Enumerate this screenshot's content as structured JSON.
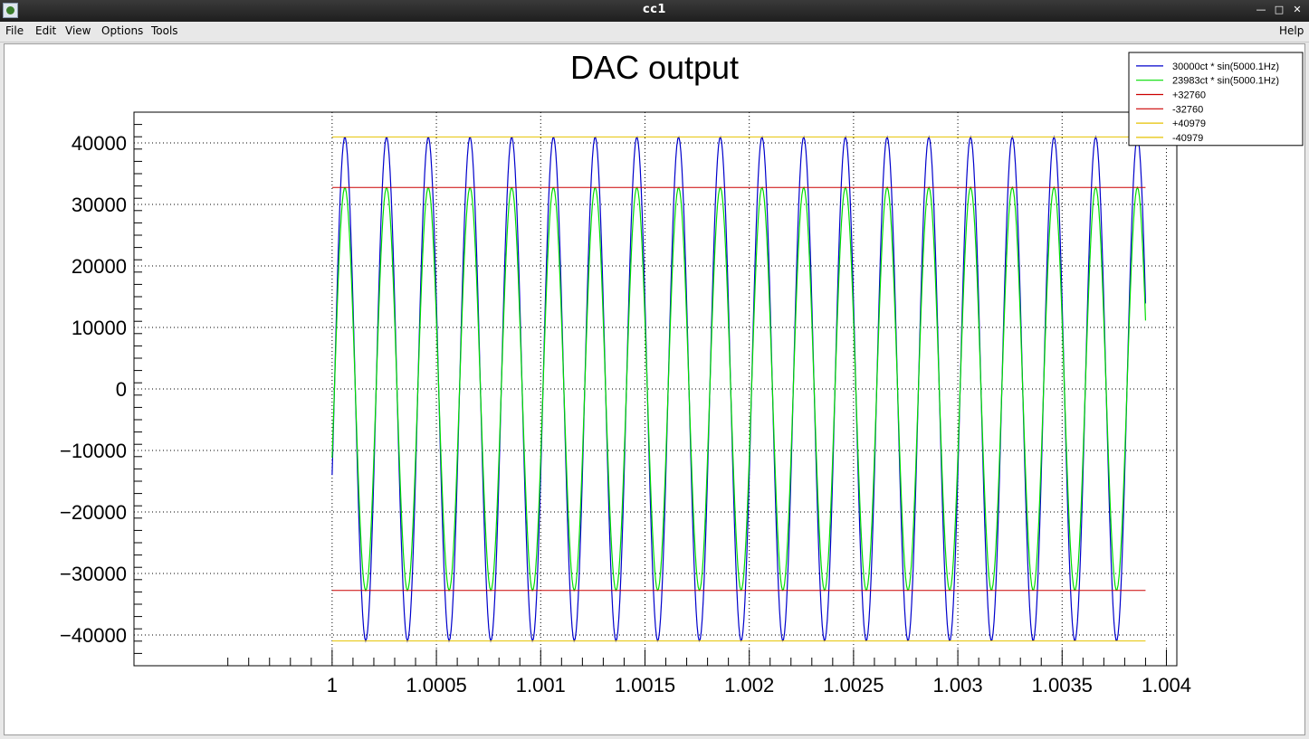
{
  "window": {
    "title": "cc1"
  },
  "menu": {
    "file": "File",
    "edit": "Edit",
    "view": "View",
    "options": "Options",
    "tools": "Tools",
    "help": "Help"
  },
  "chart_data": {
    "type": "line",
    "title": "DAC output",
    "xlabel": "",
    "ylabel": "",
    "xlim": [
      0.99905,
      1.00405
    ],
    "ylim": [
      -45000,
      45000
    ],
    "x_ticks": [
      1,
      1.0005,
      1.001,
      1.0015,
      1.002,
      1.0025,
      1.003,
      1.0035,
      1.004
    ],
    "x_tick_labels": [
      "1",
      "1.0005",
      "1.001",
      "1.0015",
      "1.002",
      "1.0025",
      "1.003",
      "1.0035",
      "1.004"
    ],
    "y_ticks": [
      -40000,
      -30000,
      -20000,
      -10000,
      0,
      10000,
      20000,
      30000,
      40000
    ],
    "y_tick_labels": [
      "−40000",
      "−30000",
      "−20000",
      "−10000",
      "0",
      "10000",
      "20000",
      "30000",
      "40000"
    ],
    "grid": true,
    "legend_position": "top-right",
    "series": [
      {
        "name": "30000ct * sin(5000.1Hz)",
        "color": "#0000cc",
        "kind": "sine",
        "amplitude": 40979,
        "frequency_hz": 5000.1,
        "x_start": 1.0,
        "x_end": 1.0039,
        "y_start": -14000
      },
      {
        "name": "23983ct * sin(5000.1Hz)",
        "color": "#00dd00",
        "kind": "sine",
        "amplitude": 32760,
        "frequency_hz": 5000.1,
        "x_start": 1.0,
        "x_end": 1.0039,
        "y_start": -11200
      },
      {
        "name": "+32760",
        "color": "#cc0000",
        "kind": "hline",
        "y": 32760,
        "x_start": 1.0,
        "x_end": 1.0039
      },
      {
        "name": "-32760",
        "color": "#cc0000",
        "kind": "hline",
        "y": -32760,
        "x_start": 1.0,
        "x_end": 1.0039
      },
      {
        "name": "+40979",
        "color": "#e6c200",
        "kind": "hline",
        "y": 40979,
        "x_start": 1.0,
        "x_end": 1.0039
      },
      {
        "name": "-40979",
        "color": "#e6c200",
        "kind": "hline",
        "y": -40979,
        "x_start": 1.0,
        "x_end": 1.0039
      }
    ]
  }
}
